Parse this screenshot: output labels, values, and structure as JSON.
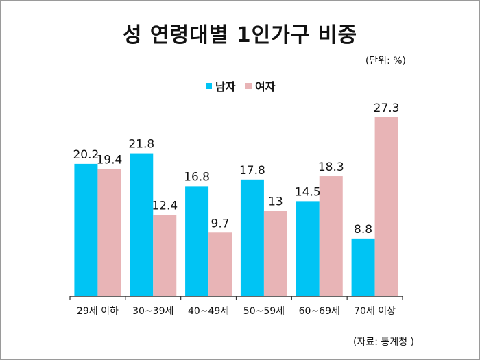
{
  "title": "성 연령대별 1인가구 비중",
  "unit": "(단위: %)",
  "source": "(자료: 통계청 )",
  "colors": {
    "male": "#00c4f4",
    "female": "#e8b4b6",
    "axis": "#333333"
  },
  "chart_data": {
    "type": "bar",
    "title": "성 연령대별 1인가구 비중",
    "xlabel": "",
    "ylabel": "",
    "ylim": [
      0,
      30
    ],
    "grid": false,
    "legend": "top-center",
    "categories": [
      "29세 이하",
      "30~39세",
      "40~49세",
      "50~59세",
      "60~69세",
      "70세 이상"
    ],
    "series": [
      {
        "name": "남자",
        "color": "#00c4f4",
        "values": [
          20.2,
          21.8,
          16.8,
          17.8,
          14.5,
          8.8
        ]
      },
      {
        "name": "여자",
        "color": "#e8b4b6",
        "values": [
          19.4,
          12.4,
          9.7,
          13,
          18.3,
          27.3
        ]
      }
    ]
  }
}
